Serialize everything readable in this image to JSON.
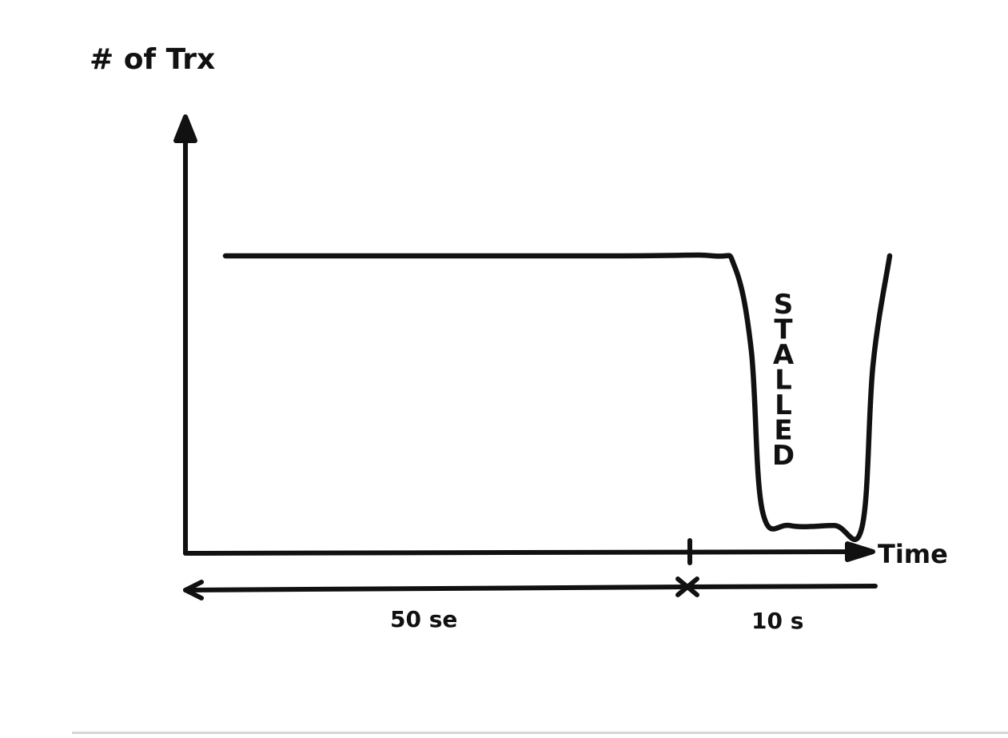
{
  "chart_data": {
    "type": "line",
    "title": "",
    "ylabel": "# of Trx",
    "xlabel": "Time",
    "annotation": "STALLED",
    "grid": false,
    "legend": "none",
    "span_labels": [
      "50 se",
      "10 s"
    ],
    "span_durations": [
      50,
      10
    ],
    "xlim": [
      0,
      60
    ],
    "ylim": [
      0,
      100
    ],
    "series": [
      {
        "x": [
          0,
          35,
          44,
          46,
          47.5,
          48.5,
          51,
          55,
          57.5,
          58.5,
          60
        ],
        "values": [
          100,
          100,
          100,
          96,
          65,
          6,
          0.5,
          0.5,
          0,
          60,
          100
        ]
      }
    ]
  }
}
